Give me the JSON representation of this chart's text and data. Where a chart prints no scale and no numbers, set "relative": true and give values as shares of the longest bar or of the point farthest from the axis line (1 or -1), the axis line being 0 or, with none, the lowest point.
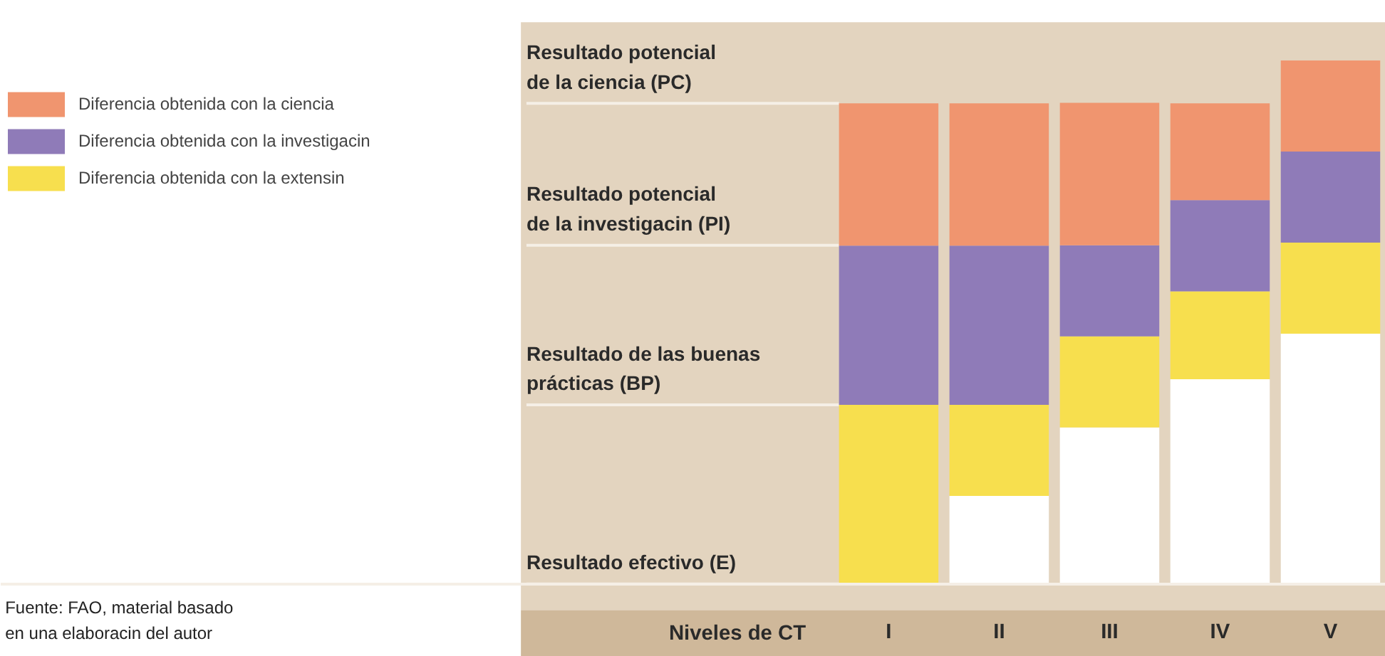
{
  "chart_data": {
    "type": "bar",
    "stacked": true,
    "relative": true,
    "xlabel": "Niveles de CT",
    "categories": [
      "I",
      "II",
      "III",
      "IV",
      "V"
    ],
    "series": [
      {
        "color": "#ffffff",
        "values": [
          0,
          0.168,
          0.299,
          0.391,
          0.478
        ]
      },
      {
        "name": "Diferencia obtenida con la extensin",
        "color": "#f7df4e",
        "values": [
          0.342,
          0.174,
          0.174,
          0.168,
          0.174
        ]
      },
      {
        "name": "Diferencia obtenida con la investigacin",
        "color": "#8f7bb8",
        "values": [
          0.304,
          0.304,
          0.174,
          0.174,
          0.174
        ]
      },
      {
        "name": "Diferencia obtenida con la ciencia",
        "color": "#f0956f",
        "values": [
          0.272,
          0.272,
          0.272,
          0.185,
          0.174
        ]
      }
    ],
    "ref_lines": [
      {
        "axis": "y",
        "value": 0.918,
        "label": "Resultado potencial\nde la ciencia (PC)",
        "color": "#f5efe6"
      },
      {
        "axis": "y",
        "value": 0.647,
        "label": "Resultado potencial\nde la investigacin (PI)",
        "color": "#f5efe6"
      },
      {
        "axis": "y",
        "value": 0.342,
        "label": "Resultado de las buenas\nprácticas (BP)",
        "color": "#f5efe6"
      },
      {
        "axis": "y",
        "value": 0,
        "label": "Resultado efectivo (E)",
        "color": "#f5efe6"
      }
    ],
    "annotations": [
      "Fuente: FAO, material basado\nen una elaboracin del autor"
    ],
    "legend": "left",
    "grid": false
  }
}
